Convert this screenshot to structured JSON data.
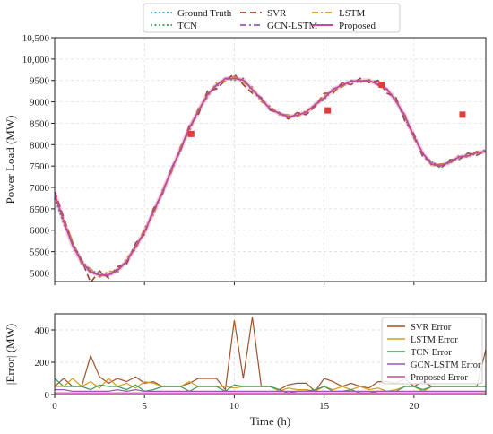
{
  "chart_data": [
    {
      "type": "line",
      "ylabel": "Power Load (MW)",
      "xlabel": "",
      "xlim": [
        0,
        24
      ],
      "ylim": [
        4800,
        10500
      ],
      "y_ticks": [
        5000,
        5500,
        6000,
        6500,
        7000,
        7500,
        8000,
        8500,
        9000,
        9500,
        10000,
        10500
      ],
      "y_tick_labels": [
        "5000",
        "5500",
        "6000",
        "6500",
        "7000",
        "7500",
        "8000",
        "8500",
        "9000",
        "9500",
        "10,000",
        "10,500"
      ],
      "grid": true,
      "legend": "top-center",
      "x": [
        0,
        0.5,
        1,
        1.5,
        2,
        2.5,
        3,
        3.5,
        4,
        4.5,
        5,
        5.5,
        6,
        6.5,
        7,
        7.5,
        8,
        8.5,
        9,
        9.5,
        10,
        10.5,
        11,
        11.5,
        12,
        12.5,
        13,
        13.5,
        14,
        14.5,
        15,
        15.5,
        16,
        16.5,
        17,
        17.5,
        18,
        18.5,
        19,
        19.5,
        20,
        20.5,
        21,
        21.5,
        22,
        22.5,
        23,
        23.5,
        24
      ],
      "series": [
        {
          "name": "Ground Truth",
          "color": "#2e9ec4",
          "style": "dotted",
          "values": [
            6850,
            6200,
            5650,
            5250,
            5020,
            4940,
            4950,
            5050,
            5280,
            5590,
            5970,
            6420,
            6900,
            7400,
            7900,
            8380,
            8800,
            9150,
            9400,
            9530,
            9560,
            9500,
            9300,
            9050,
            8850,
            8720,
            8660,
            8680,
            8770,
            8920,
            9100,
            9280,
            9400,
            9470,
            9500,
            9490,
            9420,
            9280,
            9030,
            8650,
            8200,
            7780,
            7550,
            7500,
            7600,
            7700,
            7750,
            7800,
            7850
          ]
        },
        {
          "name": "SVR",
          "color": "#a0402a",
          "style": "dashed",
          "values": [
            6900,
            6300,
            5700,
            5300,
            4780,
            5050,
            4880,
            5150,
            5200,
            5700,
            5900,
            6500,
            6850,
            7450,
            7850,
            8450,
            8700,
            9250,
            9300,
            9500,
            9650,
            9400,
            9200,
            9100,
            8800,
            8750,
            8600,
            8750,
            8700,
            8900,
            9200,
            9200,
            9450,
            9400,
            9550,
            9450,
            9500,
            9200,
            9100,
            8550,
            8250,
            7700,
            7600,
            7450,
            7650,
            7650,
            7800,
            7750,
            7850
          ]
        },
        {
          "name": "LSTM",
          "color": "#d09a1a",
          "style": "dashdot",
          "values": [
            6800,
            6250,
            5750,
            5200,
            5100,
            4900,
            5050,
            5000,
            5350,
            5550,
            6050,
            6350,
            6950,
            7350,
            7950,
            8300,
            8850,
            9100,
            9450,
            9480,
            9600,
            9450,
            9350,
            9000,
            8900,
            8700,
            8700,
            8650,
            8800,
            8900,
            9150,
            9250,
            9350,
            9500,
            9450,
            9520,
            9380,
            9300,
            9000,
            8700,
            8150,
            7800,
            7500,
            7550,
            7550,
            7750,
            7700,
            7850,
            7800
          ]
        },
        {
          "name": "TCN",
          "color": "#3a9a55",
          "style": "dotted",
          "values": [
            6750,
            6150,
            5700,
            5300,
            5050,
            5000,
            4950,
            5100,
            5250,
            5650,
            5950,
            6450,
            6850,
            7450,
            7850,
            8400,
            8750,
            9200,
            9350,
            9550,
            9500,
            9550,
            9250,
            9100,
            8800,
            8750,
            8650,
            8700,
            8750,
            8950,
            9050,
            9300,
            9380,
            9500,
            9480,
            9500,
            9400,
            9300,
            9050,
            8600,
            8250,
            7750,
            7600,
            7450,
            7650,
            7650,
            7800,
            7750,
            7900
          ]
        },
        {
          "name": "GCN-LSTM",
          "color": "#9b59b6",
          "style": "dashdot",
          "values": [
            6820,
            6230,
            5630,
            5270,
            5000,
            4960,
            4930,
            5080,
            5260,
            5620,
            5950,
            6440,
            6880,
            7420,
            7880,
            8400,
            8780,
            9170,
            9380,
            9550,
            9540,
            9520,
            9280,
            9070,
            8830,
            8740,
            8640,
            8700,
            8750,
            8940,
            9080,
            9300,
            9380,
            9490,
            9480,
            9500,
            9400,
            9300,
            9010,
            8670,
            8180,
            7800,
            7530,
            7520,
            7580,
            7720,
            7730,
            7820,
            7830
          ]
        },
        {
          "name": "Proposed",
          "color": "#c8489a",
          "style": "solid",
          "values": [
            6860,
            6210,
            5640,
            5260,
            5030,
            4950,
            4960,
            5060,
            5270,
            5600,
            5960,
            6430,
            6890,
            7410,
            7890,
            8390,
            8790,
            9160,
            9390,
            9540,
            9550,
            9510,
            9290,
            9060,
            8840,
            8730,
            8650,
            8690,
            8760,
            8930,
            9090,
            9290,
            9390,
            9480,
            9490,
            9500,
            9410,
            9290,
            9020,
            8660,
            8190,
            7790,
            7540,
            7510,
            7590,
            7710,
            7740,
            7810,
            7840
          ]
        }
      ],
      "markers": [
        {
          "x": 7.6,
          "y": 8250,
          "color": "#e23b3b"
        },
        {
          "x": 15.2,
          "y": 8800,
          "color": "#e23b3b"
        },
        {
          "x": 18.2,
          "y": 9400,
          "color": "#e23b3b"
        },
        {
          "x": 22.7,
          "y": 8700,
          "color": "#e23b3b"
        }
      ]
    },
    {
      "type": "line",
      "ylabel": "|Error| (MW)",
      "xlabel": "Time (h)",
      "xlim": [
        0,
        24
      ],
      "ylim": [
        0,
        500
      ],
      "y_ticks": [
        0,
        200,
        400
      ],
      "x_ticks": [
        0,
        5,
        10,
        15,
        20
      ],
      "grid": true,
      "legend": "top-right",
      "x": [
        0,
        0.5,
        1,
        1.5,
        2,
        2.5,
        3,
        3.5,
        4,
        4.5,
        5,
        5.5,
        6,
        6.5,
        7,
        7.5,
        8,
        8.5,
        9,
        9.5,
        10,
        10.5,
        11,
        11.5,
        12,
        12.5,
        13,
        13.5,
        14,
        14.5,
        15,
        15.5,
        16,
        16.5,
        17,
        17.5,
        18,
        18.5,
        19,
        19.5,
        20,
        20.5,
        21,
        21.5,
        22,
        22.5,
        23,
        23.5,
        24
      ],
      "series": [
        {
          "name": "SVR Error",
          "color": "#a0522d",
          "values": [
            50,
            100,
            50,
            50,
            240,
            110,
            70,
            100,
            80,
            110,
            70,
            80,
            50,
            50,
            50,
            70,
            100,
            100,
            100,
            30,
            460,
            100,
            480,
            50,
            50,
            30,
            60,
            70,
            70,
            20,
            100,
            80,
            50,
            70,
            50,
            40,
            80,
            80,
            70,
            100,
            50,
            80,
            50,
            50,
            50,
            50,
            50,
            50,
            280
          ]
        },
        {
          "name": "LSTM Error",
          "color": "#d4a017",
          "values": [
            50,
            50,
            100,
            50,
            80,
            40,
            100,
            50,
            70,
            40,
            80,
            70,
            50,
            50,
            50,
            80,
            50,
            50,
            50,
            50,
            40,
            50,
            50,
            50,
            50,
            20,
            40,
            30,
            30,
            20,
            50,
            30,
            50,
            30,
            50,
            30,
            40,
            20,
            30,
            50,
            50,
            20,
            50,
            50,
            50,
            50,
            50,
            50,
            50
          ]
        },
        {
          "name": "TCN Error",
          "color": "#3a9a55",
          "values": [
            100,
            50,
            50,
            50,
            30,
            60,
            50,
            50,
            30,
            60,
            20,
            30,
            50,
            50,
            50,
            20,
            50,
            50,
            50,
            20,
            60,
            50,
            50,
            50,
            50,
            30,
            10,
            20,
            20,
            30,
            50,
            20,
            20,
            30,
            10,
            10,
            20,
            20,
            20,
            50,
            50,
            30,
            50,
            50,
            50,
            50,
            50,
            50,
            50
          ]
        },
        {
          "name": "GCN-LSTM Error",
          "color": "#9b59b6",
          "values": [
            30,
            30,
            20,
            20,
            20,
            20,
            20,
            30,
            20,
            30,
            20,
            20,
            20,
            20,
            20,
            20,
            20,
            20,
            20,
            20,
            20,
            20,
            20,
            20,
            20,
            20,
            20,
            20,
            20,
            20,
            20,
            20,
            20,
            20,
            20,
            20,
            20,
            20,
            20,
            20,
            20,
            20,
            20,
            20,
            20,
            20,
            20,
            20,
            20
          ]
        },
        {
          "name": "Proposed Error",
          "color": "#c8489a",
          "values": [
            10,
            10,
            10,
            10,
            10,
            10,
            10,
            10,
            10,
            10,
            10,
            10,
            10,
            10,
            10,
            10,
            10,
            10,
            10,
            10,
            10,
            10,
            10,
            10,
            10,
            10,
            10,
            10,
            10,
            10,
            10,
            10,
            10,
            10,
            10,
            10,
            10,
            10,
            10,
            10,
            10,
            10,
            10,
            10,
            10,
            10,
            10,
            10,
            10
          ]
        }
      ]
    }
  ]
}
